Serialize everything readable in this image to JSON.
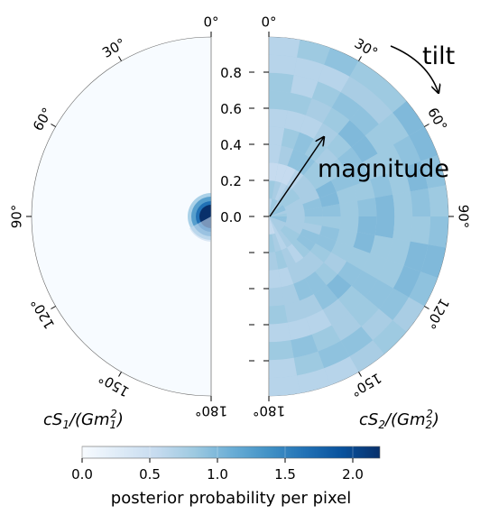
{
  "chart_data": {
    "type": "heatmap",
    "subtype": "spin-disk (two half-polar plots)",
    "left_panel": {
      "label_main": "cS",
      "label_sub": "1",
      "label_rest": "/(Gm",
      "label_sub2": "1",
      "label_sup": "2",
      "label_end": ")",
      "angle_labels": [
        "0°",
        "30°",
        "60°",
        "90°",
        "120°",
        "150°",
        "180°"
      ],
      "density_description": "near zero everywhere except a concentrated peak at small magnitude near 90° tilt",
      "peak": {
        "tilt_deg": 90,
        "magnitude": 0.0,
        "value": 2.2
      }
    },
    "right_panel": {
      "label_main": "cS",
      "label_sub": "2",
      "label_rest": "/(Gm",
      "label_sub2": "2",
      "label_sup": "2",
      "label_end": ")",
      "angle_labels": [
        "0°",
        "30°",
        "60°",
        "90°",
        "120°",
        "150°",
        "180°"
      ],
      "density_description": "broad, roughly uniform posterior across magnitude and tilt",
      "typical_value": 0.5
    },
    "radial_axis": {
      "ticks": [
        "0.8",
        "0.6",
        "0.4",
        "0.2",
        "0.0"
      ],
      "tick_values": [
        0.8,
        0.6,
        0.4,
        0.2,
        0.0
      ],
      "range": [
        0,
        1
      ]
    },
    "annotations": {
      "tilt": "tilt",
      "magnitude": "magnitude"
    },
    "colorbar": {
      "label": "posterior probability per pixel",
      "ticks": [
        "0.0",
        "0.5",
        "1.0",
        "1.5",
        "2.0"
      ],
      "tick_values": [
        0.0,
        0.5,
        1.0,
        1.5,
        2.0
      ],
      "range": [
        0.0,
        2.2
      ],
      "colormap": "Blues"
    }
  },
  "colors": {
    "low": "#f7fbff",
    "high": "#08306b"
  }
}
